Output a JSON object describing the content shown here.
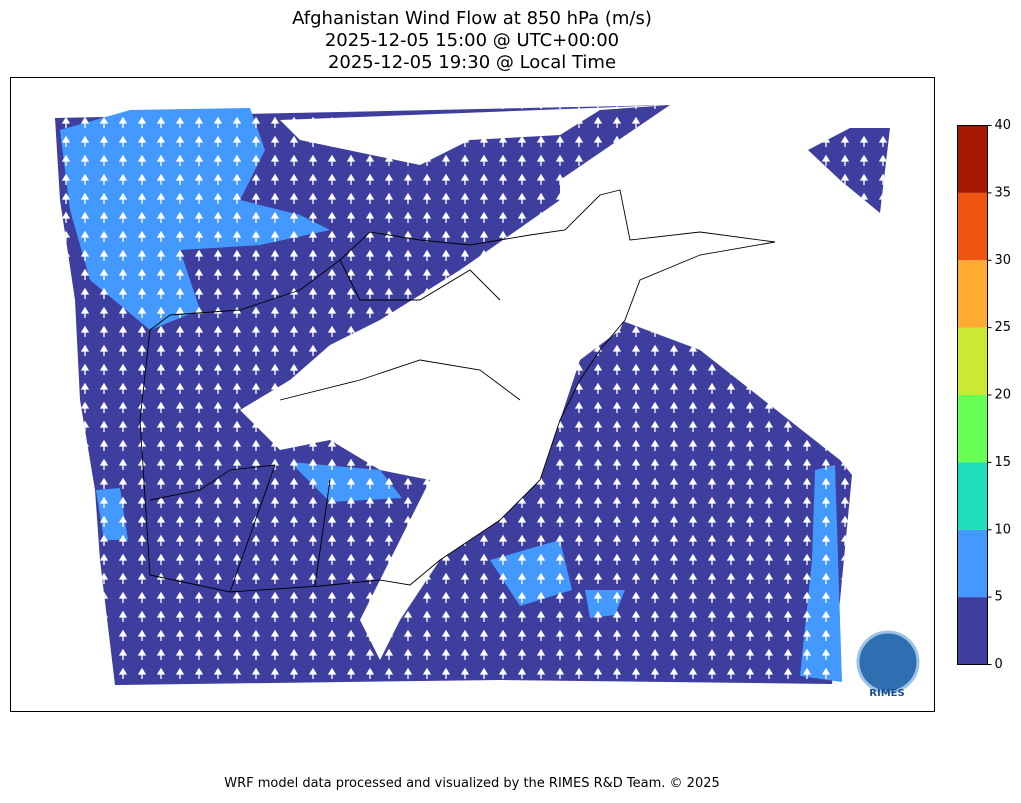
{
  "title": [
    "Afghanistan Wind Flow at 850 hPa (m/s)",
    "2025-12-05 15:00 @ UTC+00:00",
    "2025-12-05 19:30 @ Local Time"
  ],
  "colorbar": {
    "ticks": [
      0,
      5,
      10,
      15,
      20,
      25,
      30,
      35,
      40
    ],
    "colors": [
      "#3e3e9e",
      "#4499ff",
      "#1edcbc",
      "#66ff55",
      "#cce833",
      "#ffaa33",
      "#ee5511",
      "#a41700"
    ]
  },
  "logo": "RIMES",
  "footer": "WRF model data processed and visualized by the RIMES R&D Team. © 2025"
}
